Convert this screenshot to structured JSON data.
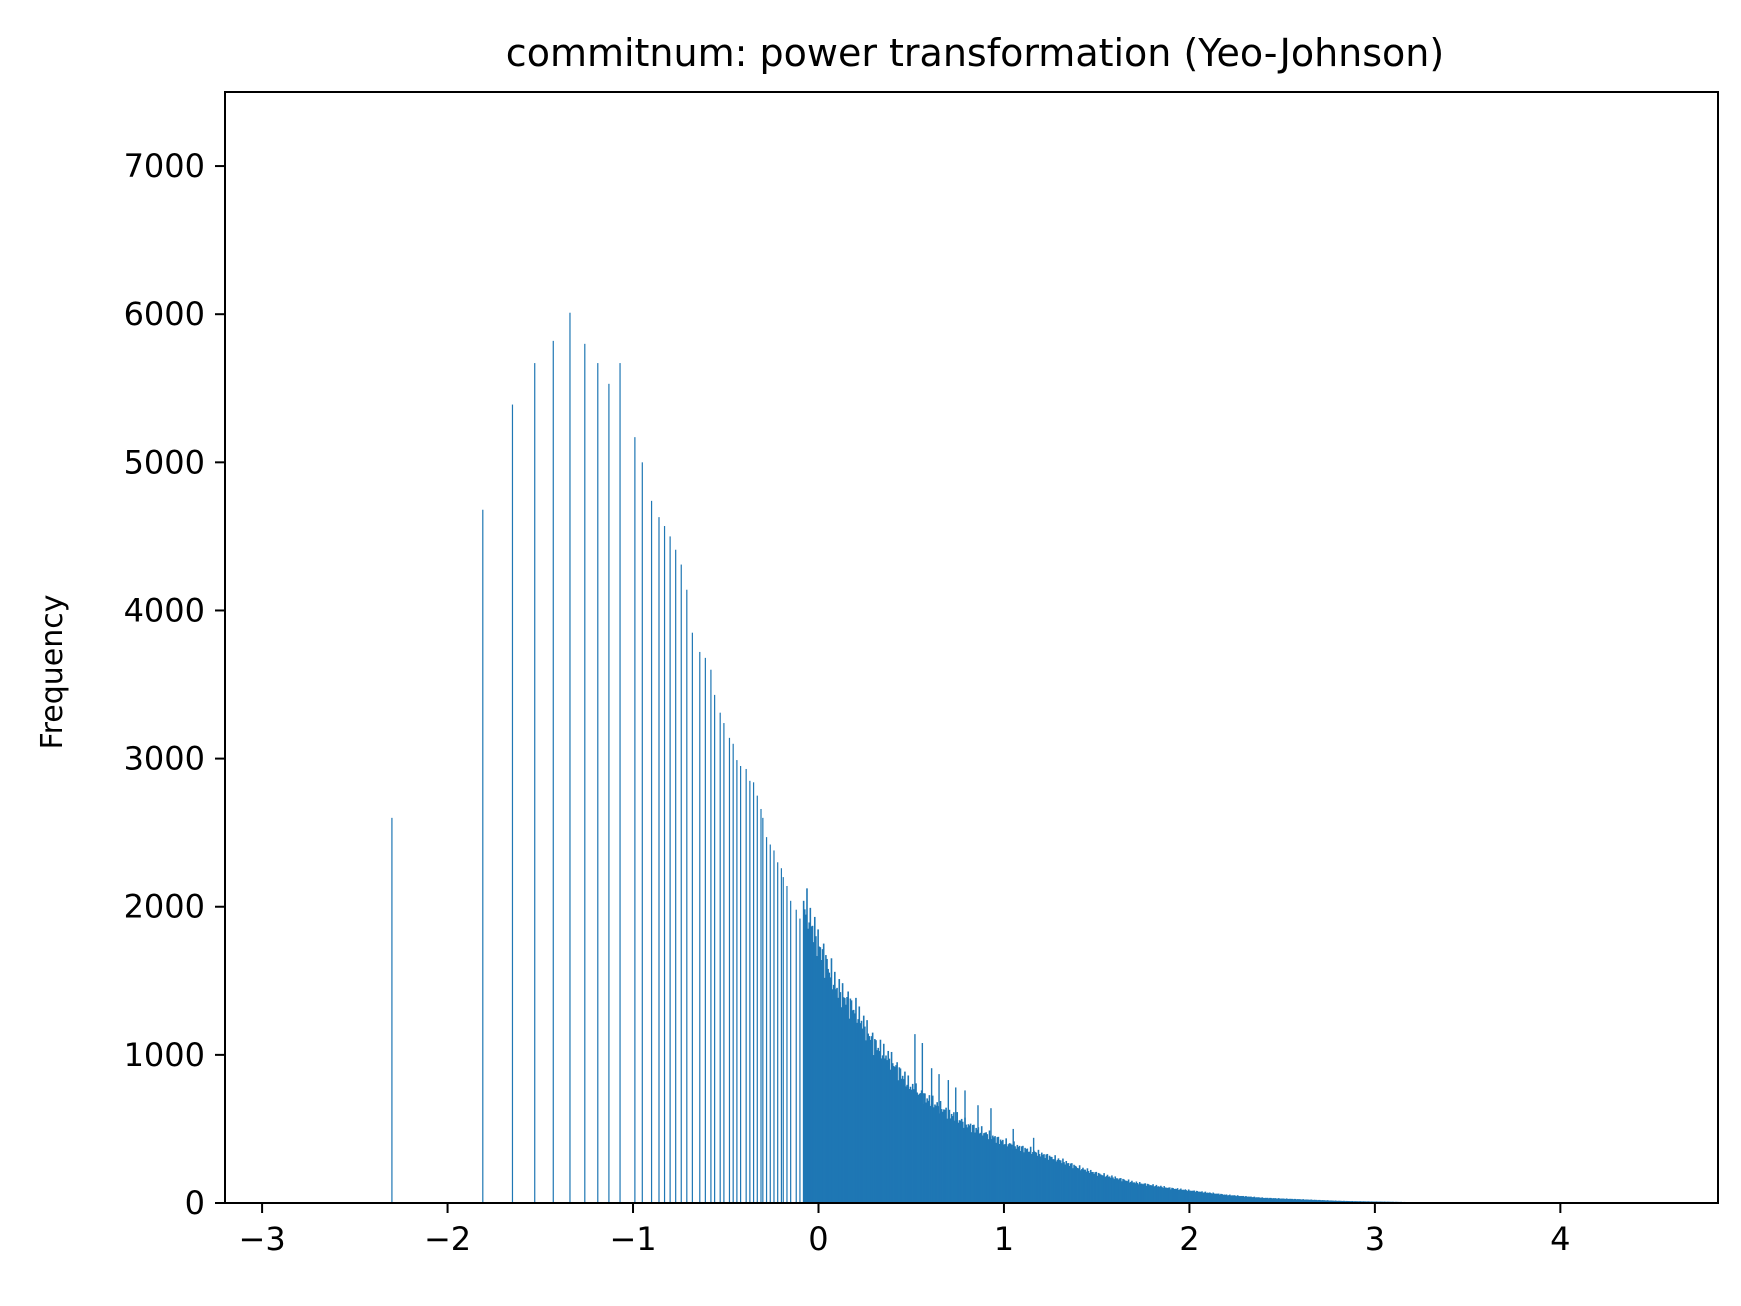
{
  "chart_data": {
    "type": "bar",
    "title": "commitnum: power transformation (Yeo-Johnson)",
    "xlabel": "",
    "ylabel": "Frequency",
    "xlim": [
      -3.2,
      4.85
    ],
    "ylim": [
      0,
      7500
    ],
    "xticks": [
      -3,
      -2,
      -1,
      0,
      1,
      2,
      3,
      4
    ],
    "xtick_labels": [
      "−3",
      "−2",
      "−1",
      "0",
      "1",
      "2",
      "3",
      "4"
    ],
    "yticks": [
      0,
      1000,
      2000,
      3000,
      4000,
      5000,
      6000,
      7000
    ],
    "ytick_labels": [
      "0",
      "1000",
      "2000",
      "3000",
      "4000",
      "5000",
      "6000",
      "7000"
    ],
    "grid": false,
    "legend": "none",
    "bar_color": "#1f77b4",
    "series": [
      {
        "x": [
          -2.3,
          -1.81,
          -1.65,
          -1.53,
          -1.43,
          -1.34,
          -1.26,
          -1.19,
          -1.13,
          -1.07,
          -0.99,
          -0.95,
          -0.9,
          -0.86,
          -0.83,
          -0.8,
          -0.77,
          -0.74,
          -0.71,
          -0.68,
          -0.64,
          -0.61,
          -0.58,
          -0.56,
          -0.53,
          -0.51,
          -0.48,
          -0.46,
          -0.44,
          -0.42,
          -0.39,
          -0.37,
          -0.35,
          -0.33,
          -0.31,
          -0.3,
          -0.28,
          -0.26,
          -0.24,
          -0.22,
          -0.2,
          -0.19,
          -0.17,
          -0.15,
          -0.12,
          -0.1,
          -0.08
        ],
        "y": [
          2600,
          4680,
          5390,
          5670,
          5820,
          6010,
          5800,
          5670,
          5530,
          5670,
          5170,
          5000,
          4740,
          4630,
          4570,
          4500,
          4410,
          4310,
          4140,
          3850,
          3720,
          3680,
          3600,
          3430,
          3310,
          3240,
          3140,
          3100,
          2990,
          2950,
          2930,
          2850,
          2840,
          2750,
          2660,
          2600,
          2470,
          2420,
          2380,
          2300,
          2260,
          2200,
          2140,
          2040,
          1980,
          1920,
          1880
        ]
      }
    ],
    "tail_envelope": {
      "x": [
        -0.08,
        0.0,
        0.1,
        0.2,
        0.3,
        0.4,
        0.5,
        0.6,
        0.7,
        0.8,
        0.9,
        1.0,
        1.1,
        1.2,
        1.3,
        1.4,
        1.5,
        1.6,
        1.7,
        1.8,
        1.9,
        2.0,
        2.1,
        2.2,
        2.3,
        2.4,
        2.5,
        2.6,
        2.7,
        2.8,
        2.9,
        3.0,
        3.1,
        3.2,
        3.3,
        3.5,
        3.7,
        3.9,
        4.1,
        4.4
      ],
      "y": [
        2040,
        1750,
        1450,
        1300,
        1080,
        950,
        780,
        690,
        610,
        530,
        470,
        410,
        370,
        330,
        290,
        240,
        200,
        170,
        140,
        120,
        100,
        85,
        70,
        55,
        45,
        35,
        30,
        25,
        20,
        15,
        12,
        10,
        8,
        6,
        5,
        4,
        3,
        2,
        2,
        1
      ]
    },
    "tail_spikes": {
      "x": [
        0.52,
        0.56,
        0.61,
        0.65,
        0.7,
        0.74,
        0.79,
        0.86,
        0.93,
        1.05,
        1.16
      ],
      "y": [
        1140,
        1080,
        910,
        870,
        830,
        780,
        760,
        660,
        640,
        500,
        440
      ]
    }
  }
}
